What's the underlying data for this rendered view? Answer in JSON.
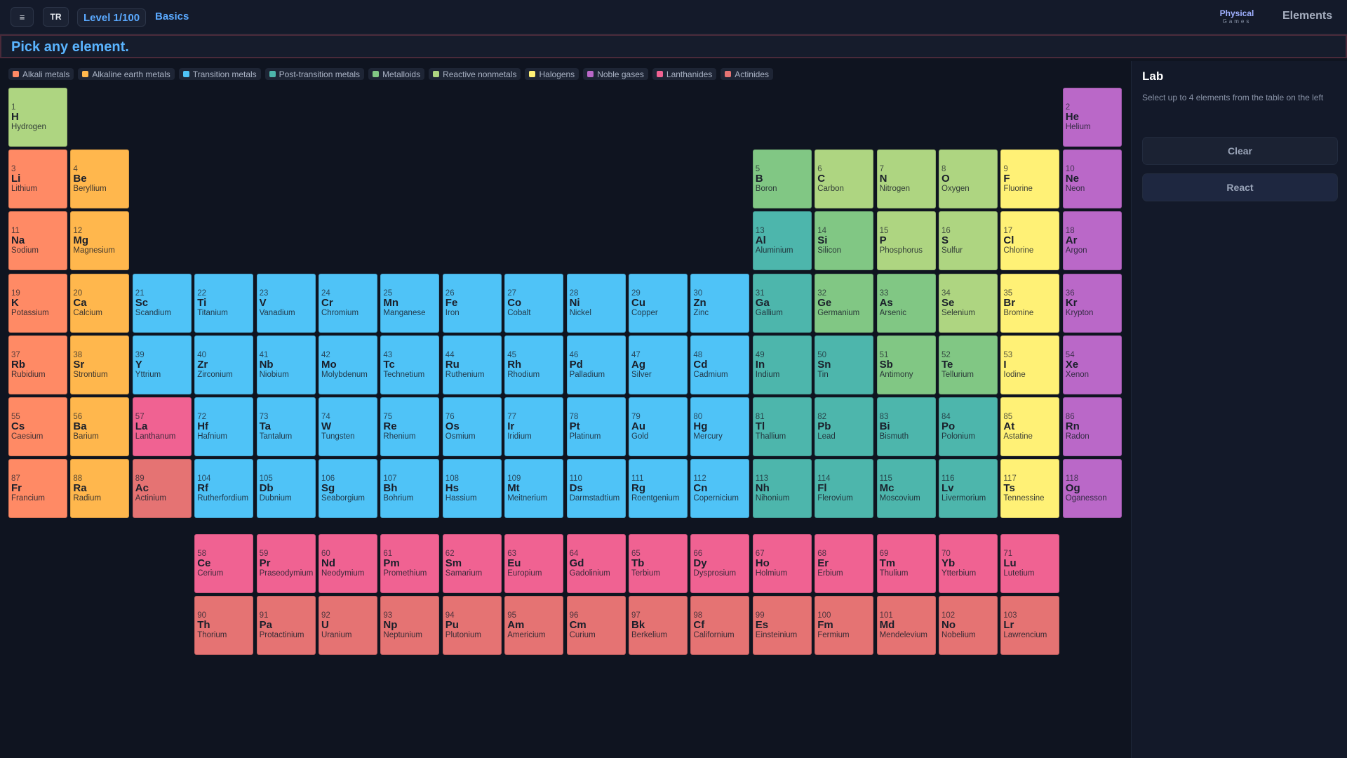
{
  "header": {
    "menu_icon": "≡",
    "lang": "TR",
    "level": "Level 1/100",
    "mode": "Basics",
    "logo_main": "Physical",
    "logo_sub": "Games",
    "app_title": "Elements"
  },
  "prompt": "Pick any element.",
  "legend": [
    {
      "label": "Alkali metals",
      "color": "#ff8a65"
    },
    {
      "label": "Alkaline earth metals",
      "color": "#ffb74d"
    },
    {
      "label": "Transition metals",
      "color": "#4fc3f7"
    },
    {
      "label": "Post-transition metals",
      "color": "#4db6ac"
    },
    {
      "label": "Metalloids",
      "color": "#81c784"
    },
    {
      "label": "Reactive nonmetals",
      "color": "#aed581"
    },
    {
      "label": "Halogens",
      "color": "#fff176"
    },
    {
      "label": "Noble gases",
      "color": "#ba68c8"
    },
    {
      "label": "Lanthanides",
      "color": "#f06292"
    },
    {
      "label": "Actinides",
      "color": "#e57373"
    }
  ],
  "lab": {
    "title": "Lab",
    "hint": "Select up to 4 elements from the table on the left",
    "clear_label": "Clear",
    "react_label": "React"
  },
  "elements": [
    {
      "n": 1,
      "s": "H",
      "name": "Hydrogen",
      "c": "nonmetal",
      "row": 0,
      "col": 0
    },
    {
      "n": 2,
      "s": "He",
      "name": "Helium",
      "c": "noble",
      "row": 0,
      "col": 17
    },
    {
      "n": 3,
      "s": "Li",
      "name": "Lithium",
      "c": "alkali",
      "row": 1,
      "col": 0
    },
    {
      "n": 4,
      "s": "Be",
      "name": "Beryllium",
      "c": "alkaline",
      "row": 1,
      "col": 1
    },
    {
      "n": 5,
      "s": "B",
      "name": "Boron",
      "c": "metalloid",
      "row": 1,
      "col": 12
    },
    {
      "n": 6,
      "s": "C",
      "name": "Carbon",
      "c": "nonmetal",
      "row": 1,
      "col": 13
    },
    {
      "n": 7,
      "s": "N",
      "name": "Nitrogen",
      "c": "nonmetal",
      "row": 1,
      "col": 14
    },
    {
      "n": 8,
      "s": "O",
      "name": "Oxygen",
      "c": "nonmetal",
      "row": 1,
      "col": 15
    },
    {
      "n": 9,
      "s": "F",
      "name": "Fluorine",
      "c": "halogen",
      "row": 1,
      "col": 16
    },
    {
      "n": 10,
      "s": "Ne",
      "name": "Neon",
      "c": "noble",
      "row": 1,
      "col": 17
    },
    {
      "n": 11,
      "s": "Na",
      "name": "Sodium",
      "c": "alkali",
      "row": 2,
      "col": 0
    },
    {
      "n": 12,
      "s": "Mg",
      "name": "Magnesium",
      "c": "alkaline",
      "row": 2,
      "col": 1
    },
    {
      "n": 13,
      "s": "Al",
      "name": "Aluminium",
      "c": "post",
      "row": 2,
      "col": 12
    },
    {
      "n": 14,
      "s": "Si",
      "name": "Silicon",
      "c": "metalloid",
      "row": 2,
      "col": 13
    },
    {
      "n": 15,
      "s": "P",
      "name": "Phosphorus",
      "c": "nonmetal",
      "row": 2,
      "col": 14
    },
    {
      "n": 16,
      "s": "S",
      "name": "Sulfur",
      "c": "nonmetal",
      "row": 2,
      "col": 15
    },
    {
      "n": 17,
      "s": "Cl",
      "name": "Chlorine",
      "c": "halogen",
      "row": 2,
      "col": 16
    },
    {
      "n": 18,
      "s": "Ar",
      "name": "Argon",
      "c": "noble",
      "row": 2,
      "col": 17
    },
    {
      "n": 19,
      "s": "K",
      "name": "Potassium",
      "c": "alkali",
      "row": 3,
      "col": 0
    },
    {
      "n": 20,
      "s": "Ca",
      "name": "Calcium",
      "c": "alkaline",
      "row": 3,
      "col": 1
    },
    {
      "n": 21,
      "s": "Sc",
      "name": "Scandium",
      "c": "transition",
      "row": 3,
      "col": 2
    },
    {
      "n": 22,
      "s": "Ti",
      "name": "Titanium",
      "c": "transition",
      "row": 3,
      "col": 3
    },
    {
      "n": 23,
      "s": "V",
      "name": "Vanadium",
      "c": "transition",
      "row": 3,
      "col": 4
    },
    {
      "n": 24,
      "s": "Cr",
      "name": "Chromium",
      "c": "transition",
      "row": 3,
      "col": 5
    },
    {
      "n": 25,
      "s": "Mn",
      "name": "Manganese",
      "c": "transition",
      "row": 3,
      "col": 6
    },
    {
      "n": 26,
      "s": "Fe",
      "name": "Iron",
      "c": "transition",
      "row": 3,
      "col": 7
    },
    {
      "n": 27,
      "s": "Co",
      "name": "Cobalt",
      "c": "transition",
      "row": 3,
      "col": 8
    },
    {
      "n": 28,
      "s": "Ni",
      "name": "Nickel",
      "c": "transition",
      "row": 3,
      "col": 9
    },
    {
      "n": 29,
      "s": "Cu",
      "name": "Copper",
      "c": "transition",
      "row": 3,
      "col": 10
    },
    {
      "n": 30,
      "s": "Zn",
      "name": "Zinc",
      "c": "transition",
      "row": 3,
      "col": 11
    },
    {
      "n": 31,
      "s": "Ga",
      "name": "Gallium",
      "c": "post",
      "row": 3,
      "col": 12
    },
    {
      "n": 32,
      "s": "Ge",
      "name": "Germanium",
      "c": "metalloid",
      "row": 3,
      "col": 13
    },
    {
      "n": 33,
      "s": "As",
      "name": "Arsenic",
      "c": "metalloid",
      "row": 3,
      "col": 14
    },
    {
      "n": 34,
      "s": "Se",
      "name": "Selenium",
      "c": "nonmetal",
      "row": 3,
      "col": 15
    },
    {
      "n": 35,
      "s": "Br",
      "name": "Bromine",
      "c": "halogen",
      "row": 3,
      "col": 16
    },
    {
      "n": 36,
      "s": "Kr",
      "name": "Krypton",
      "c": "noble",
      "row": 3,
      "col": 17
    },
    {
      "n": 37,
      "s": "Rb",
      "name": "Rubidium",
      "c": "alkali",
      "row": 4,
      "col": 0
    },
    {
      "n": 38,
      "s": "Sr",
      "name": "Strontium",
      "c": "alkaline",
      "row": 4,
      "col": 1
    },
    {
      "n": 39,
      "s": "Y",
      "name": "Yttrium",
      "c": "transition",
      "row": 4,
      "col": 2
    },
    {
      "n": 40,
      "s": "Zr",
      "name": "Zirconium",
      "c": "transition",
      "row": 4,
      "col": 3
    },
    {
      "n": 41,
      "s": "Nb",
      "name": "Niobium",
      "c": "transition",
      "row": 4,
      "col": 4
    },
    {
      "n": 42,
      "s": "Mo",
      "name": "Molybdenum",
      "c": "transition",
      "row": 4,
      "col": 5
    },
    {
      "n": 43,
      "s": "Tc",
      "name": "Technetium",
      "c": "transition",
      "row": 4,
      "col": 6
    },
    {
      "n": 44,
      "s": "Ru",
      "name": "Ruthenium",
      "c": "transition",
      "row": 4,
      "col": 7
    },
    {
      "n": 45,
      "s": "Rh",
      "name": "Rhodium",
      "c": "transition",
      "row": 4,
      "col": 8
    },
    {
      "n": 46,
      "s": "Pd",
      "name": "Palladium",
      "c": "transition",
      "row": 4,
      "col": 9
    },
    {
      "n": 47,
      "s": "Ag",
      "name": "Silver",
      "c": "transition",
      "row": 4,
      "col": 10
    },
    {
      "n": 48,
      "s": "Cd",
      "name": "Cadmium",
      "c": "transition",
      "row": 4,
      "col": 11
    },
    {
      "n": 49,
      "s": "In",
      "name": "Indium",
      "c": "post",
      "row": 4,
      "col": 12
    },
    {
      "n": 50,
      "s": "Sn",
      "name": "Tin",
      "c": "post",
      "row": 4,
      "col": 13
    },
    {
      "n": 51,
      "s": "Sb",
      "name": "Antimony",
      "c": "metalloid",
      "row": 4,
      "col": 14
    },
    {
      "n": 52,
      "s": "Te",
      "name": "Tellurium",
      "c": "metalloid",
      "row": 4,
      "col": 15
    },
    {
      "n": 53,
      "s": "I",
      "name": "Iodine",
      "c": "halogen",
      "row": 4,
      "col": 16
    },
    {
      "n": 54,
      "s": "Xe",
      "name": "Xenon",
      "c": "noble",
      "row": 4,
      "col": 17
    },
    {
      "n": 55,
      "s": "Cs",
      "name": "Caesium",
      "c": "alkali",
      "row": 5,
      "col": 0
    },
    {
      "n": 56,
      "s": "Ba",
      "name": "Barium",
      "c": "alkaline",
      "row": 5,
      "col": 1
    },
    {
      "n": 57,
      "s": "La",
      "name": "Lanthanum",
      "c": "lanthanide",
      "row": 5,
      "col": 2
    },
    {
      "n": 72,
      "s": "Hf",
      "name": "Hafnium",
      "c": "transition",
      "row": 5,
      "col": 3
    },
    {
      "n": 73,
      "s": "Ta",
      "name": "Tantalum",
      "c": "transition",
      "row": 5,
      "col": 4
    },
    {
      "n": 74,
      "s": "W",
      "name": "Tungsten",
      "c": "transition",
      "row": 5,
      "col": 5
    },
    {
      "n": 75,
      "s": "Re",
      "name": "Rhenium",
      "c": "transition",
      "row": 5,
      "col": 6
    },
    {
      "n": 76,
      "s": "Os",
      "name": "Osmium",
      "c": "transition",
      "row": 5,
      "col": 7
    },
    {
      "n": 77,
      "s": "Ir",
      "name": "Iridium",
      "c": "transition",
      "row": 5,
      "col": 8
    },
    {
      "n": 78,
      "s": "Pt",
      "name": "Platinum",
      "c": "transition",
      "row": 5,
      "col": 9
    },
    {
      "n": 79,
      "s": "Au",
      "name": "Gold",
      "c": "transition",
      "row": 5,
      "col": 10
    },
    {
      "n": 80,
      "s": "Hg",
      "name": "Mercury",
      "c": "transition",
      "row": 5,
      "col": 11
    },
    {
      "n": 81,
      "s": "Tl",
      "name": "Thallium",
      "c": "post",
      "row": 5,
      "col": 12
    },
    {
      "n": 82,
      "s": "Pb",
      "name": "Lead",
      "c": "post",
      "row": 5,
      "col": 13
    },
    {
      "n": 83,
      "s": "Bi",
      "name": "Bismuth",
      "c": "post",
      "row": 5,
      "col": 14
    },
    {
      "n": 84,
      "s": "Po",
      "name": "Polonium",
      "c": "post",
      "row": 5,
      "col": 15
    },
    {
      "n": 85,
      "s": "At",
      "name": "Astatine",
      "c": "halogen",
      "row": 5,
      "col": 16
    },
    {
      "n": 86,
      "s": "Rn",
      "name": "Radon",
      "c": "noble",
      "row": 5,
      "col": 17
    },
    {
      "n": 87,
      "s": "Fr",
      "name": "Francium",
      "c": "alkali",
      "row": 6,
      "col": 0
    },
    {
      "n": 88,
      "s": "Ra",
      "name": "Radium",
      "c": "alkaline",
      "row": 6,
      "col": 1
    },
    {
      "n": 89,
      "s": "Ac",
      "name": "Actinium",
      "c": "actinide",
      "row": 6,
      "col": 2
    },
    {
      "n": 104,
      "s": "Rf",
      "name": "Rutherfordium",
      "c": "transition",
      "row": 6,
      "col": 3
    },
    {
      "n": 105,
      "s": "Db",
      "name": "Dubnium",
      "c": "transition",
      "row": 6,
      "col": 4
    },
    {
      "n": 106,
      "s": "Sg",
      "name": "Seaborgium",
      "c": "transition",
      "row": 6,
      "col": 5
    },
    {
      "n": 107,
      "s": "Bh",
      "name": "Bohrium",
      "c": "transition",
      "row": 6,
      "col": 6
    },
    {
      "n": 108,
      "s": "Hs",
      "name": "Hassium",
      "c": "transition",
      "row": 6,
      "col": 7
    },
    {
      "n": 109,
      "s": "Mt",
      "name": "Meitnerium",
      "c": "transition",
      "row": 6,
      "col": 8
    },
    {
      "n": 110,
      "s": "Ds",
      "name": "Darmstadtium",
      "c": "transition",
      "row": 6,
      "col": 9
    },
    {
      "n": 111,
      "s": "Rg",
      "name": "Roentgenium",
      "c": "transition",
      "row": 6,
      "col": 10
    },
    {
      "n": 112,
      "s": "Cn",
      "name": "Copernicium",
      "c": "transition",
      "row": 6,
      "col": 11
    },
    {
      "n": 113,
      "s": "Nh",
      "name": "Nihonium",
      "c": "post",
      "row": 6,
      "col": 12
    },
    {
      "n": 114,
      "s": "Fl",
      "name": "Flerovium",
      "c": "post",
      "row": 6,
      "col": 13
    },
    {
      "n": 115,
      "s": "Mc",
      "name": "Moscovium",
      "c": "post",
      "row": 6,
      "col": 14
    },
    {
      "n": 116,
      "s": "Lv",
      "name": "Livermorium",
      "c": "post",
      "row": 6,
      "col": 15
    },
    {
      "n": 117,
      "s": "Ts",
      "name": "Tennessine",
      "c": "halogen",
      "row": 6,
      "col": 16
    },
    {
      "n": 118,
      "s": "Og",
      "name": "Oganesson",
      "c": "noble",
      "row": 6,
      "col": 17
    },
    {
      "n": 58,
      "s": "Ce",
      "name": "Cerium",
      "c": "lanthanide",
      "row": 7,
      "col": 3
    },
    {
      "n": 59,
      "s": "Pr",
      "name": "Praseodymium",
      "c": "lanthanide",
      "row": 7,
      "col": 4
    },
    {
      "n": 60,
      "s": "Nd",
      "name": "Neodymium",
      "c": "lanthanide",
      "row": 7,
      "col": 5
    },
    {
      "n": 61,
      "s": "Pm",
      "name": "Promethium",
      "c": "lanthanide",
      "row": 7,
      "col": 6
    },
    {
      "n": 62,
      "s": "Sm",
      "name": "Samarium",
      "c": "lanthanide",
      "row": 7,
      "col": 7
    },
    {
      "n": 63,
      "s": "Eu",
      "name": "Europium",
      "c": "lanthanide",
      "row": 7,
      "col": 8
    },
    {
      "n": 64,
      "s": "Gd",
      "name": "Gadolinium",
      "c": "lanthanide",
      "row": 7,
      "col": 9
    },
    {
      "n": 65,
      "s": "Tb",
      "name": "Terbium",
      "c": "lanthanide",
      "row": 7,
      "col": 10
    },
    {
      "n": 66,
      "s": "Dy",
      "name": "Dysprosium",
      "c": "lanthanide",
      "row": 7,
      "col": 11
    },
    {
      "n": 67,
      "s": "Ho",
      "name": "Holmium",
      "c": "lanthanide",
      "row": 7,
      "col": 12
    },
    {
      "n": 68,
      "s": "Er",
      "name": "Erbium",
      "c": "lanthanide",
      "row": 7,
      "col": 13
    },
    {
      "n": 69,
      "s": "Tm",
      "name": "Thulium",
      "c": "lanthanide",
      "row": 7,
      "col": 14
    },
    {
      "n": 70,
      "s": "Yb",
      "name": "Ytterbium",
      "c": "lanthanide",
      "row": 7,
      "col": 15
    },
    {
      "n": 71,
      "s": "Lu",
      "name": "Lutetium",
      "c": "lanthanide",
      "row": 7,
      "col": 16
    },
    {
      "n": 90,
      "s": "Th",
      "name": "Thorium",
      "c": "actinide",
      "row": 8,
      "col": 3
    },
    {
      "n": 91,
      "s": "Pa",
      "name": "Protactinium",
      "c": "actinide",
      "row": 8,
      "col": 4
    },
    {
      "n": 92,
      "s": "U",
      "name": "Uranium",
      "c": "actinide",
      "row": 8,
      "col": 5
    },
    {
      "n": 93,
      "s": "Np",
      "name": "Neptunium",
      "c": "actinide",
      "row": 8,
      "col": 6
    },
    {
      "n": 94,
      "s": "Pu",
      "name": "Plutonium",
      "c": "actinide",
      "row": 8,
      "col": 7
    },
    {
      "n": 95,
      "s": "Am",
      "name": "Americium",
      "c": "actinide",
      "row": 8,
      "col": 8
    },
    {
      "n": 96,
      "s": "Cm",
      "name": "Curium",
      "c": "actinide",
      "row": 8,
      "col": 9
    },
    {
      "n": 97,
      "s": "Bk",
      "name": "Berkelium",
      "c": "actinide",
      "row": 8,
      "col": 10
    },
    {
      "n": 98,
      "s": "Cf",
      "name": "Californium",
      "c": "actinide",
      "row": 8,
      "col": 11
    },
    {
      "n": 99,
      "s": "Es",
      "name": "Einsteinium",
      "c": "actinide",
      "row": 8,
      "col": 12
    },
    {
      "n": 100,
      "s": "Fm",
      "name": "Fermium",
      "c": "actinide",
      "row": 8,
      "col": 13
    },
    {
      "n": 101,
      "s": "Md",
      "name": "Mendelevium",
      "c": "actinide",
      "row": 8,
      "col": 14
    },
    {
      "n": 102,
      "s": "No",
      "name": "Nobelium",
      "c": "actinide",
      "row": 8,
      "col": 15
    },
    {
      "n": 103,
      "s": "Lr",
      "name": "Lawrencium",
      "c": "actinide",
      "row": 8,
      "col": 16
    }
  ],
  "category_colors": {
    "alkali": "#ff8a65",
    "alkaline": "#ffb74d",
    "transition": "#4fc3f7",
    "post": "#4db6ac",
    "metalloid": "#81c784",
    "nonmetal": "#aed581",
    "halogen": "#fff176",
    "noble": "#ba68c8",
    "lanthanide": "#f06292",
    "actinide": "#e57373"
  }
}
